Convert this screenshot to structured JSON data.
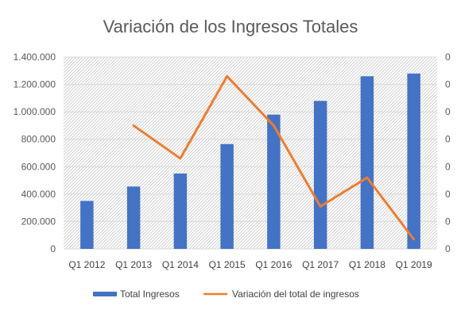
{
  "chart_data": {
    "type": "bar",
    "title": "Variación de los Ingresos Totales",
    "categories": [
      "Q1 2012",
      "Q1 2013",
      "Q1 2014",
      "Q1 2015",
      "Q1 2016",
      "Q1 2017",
      "Q1 2018",
      "Q1 2019"
    ],
    "series": [
      {
        "name": "Total Ingresos",
        "type": "bar",
        "axis": "left",
        "color": "#4472c4",
        "values": [
          350000,
          455000,
          550000,
          765000,
          980000,
          1080000,
          1260000,
          1280000
        ]
      },
      {
        "name": "Variación del total de ingresos",
        "type": "line",
        "axis": "right",
        "color": "#ed7d31",
        "values": [
          null,
          0.45,
          0.33,
          0.63,
          0.45,
          0.155,
          0.26,
          0.035
        ]
      }
    ],
    "y_left": {
      "ylim": [
        0,
        1400000
      ],
      "ticks": [
        0,
        200000,
        400000,
        600000,
        800000,
        1000000,
        1200000,
        1400000
      ],
      "tick_labels": [
        "0",
        "200.000",
        "400.000",
        "600.000",
        "800.000",
        "1.000.000",
        "1.200.000",
        "1.400.000"
      ]
    },
    "y_right": {
      "ylim": [
        0,
        0.7
      ],
      "tick_labels": [
        "0",
        "0",
        "0",
        "0",
        "0",
        "0",
        "0",
        "0"
      ]
    },
    "grid": true,
    "legend": "bottom"
  }
}
